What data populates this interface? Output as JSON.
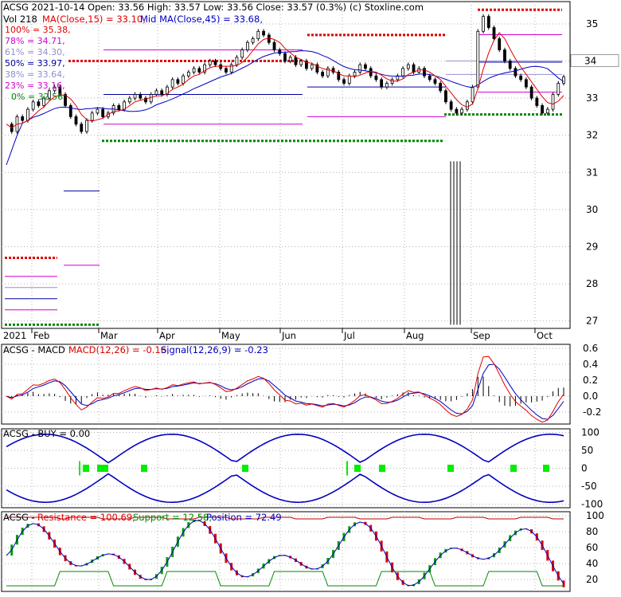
{
  "header": {
    "line1_a": "ACSG  2021-10-14 Open: 33.56  High: 33.57  Low: 33.56  Close: 33.57 (0.3%) (c) Stoxline.com",
    "line2_vol": "Vol 218",
    "line2_ma15": "MA(Close,15) = 33.10,",
    "line2_ma45": "Mid MA(Close,45) = 33.68,"
  },
  "fib_levels": [
    {
      "label": "100% = 35.38,",
      "value": 35.38,
      "color": "#e00000"
    },
    {
      "label": "78% = 34.71,",
      "value": 34.71,
      "color": "#d000d0"
    },
    {
      "label": "61% = 34.30,",
      "value": 34.3,
      "color": "#9090d0"
    },
    {
      "label": "50% = 33.97,",
      "value": 33.97,
      "color": "#0000a0"
    },
    {
      "label": "38% = 33.64,",
      "value": 33.64,
      "color": "#9090d0"
    },
    {
      "label": "23% = 33.16,",
      "value": 33.16,
      "color": "#d000d0"
    },
    {
      "label": "0% = 32.56",
      "value": 32.56,
      "color": "#008800"
    }
  ],
  "colors": {
    "ma15": "#e00000",
    "ma45": "#0000c0",
    "up": "#00a000",
    "down": "#e00000",
    "grid": "#b0b0b0",
    "green_bar": "#00ee00"
  },
  "price_panel": {
    "y_ticks": [
      "35",
      "34",
      "33",
      "32",
      "31",
      "30",
      "29",
      "28",
      "27"
    ],
    "y_values": [
      35,
      34,
      33,
      32,
      31,
      30,
      29,
      28,
      27
    ],
    "last_price_label": "34",
    "last_price_label2": "33",
    "x_labels": [
      "2021",
      "Feb",
      "Mar",
      "Apr",
      "May",
      "Jun",
      "Jul",
      "Aug",
      "Sep",
      "Oct"
    ]
  },
  "macd_panel": {
    "title": "ACSG - MACD",
    "macd_label": "MACD(12,26) = -0.16,",
    "signal_label": "Signal(12,26,9) = -0.23",
    "y_ticks": [
      "0.6",
      "0.4",
      "0.2",
      "0.0",
      "-0.2"
    ]
  },
  "buy_panel": {
    "title": "ACSG - BUY = 0.00",
    "y_ticks": [
      "100",
      "50",
      "0",
      "-50",
      "-100"
    ]
  },
  "rs_panel": {
    "title": "ACSG - ",
    "resistance_label": "Resistance = 100.69,",
    "support_label": "Support = 12.58,",
    "position_label": "Position = 72.49",
    "y_ticks": [
      "100",
      "80",
      "60",
      "40",
      "20"
    ]
  },
  "chart_data": [
    {
      "type": "candlestick",
      "title": "ACSG  2021-10-14",
      "ylim": [
        26.8,
        35.6
      ],
      "ohlc_last": {
        "date": "2021-10-14",
        "open": 33.56,
        "high": 33.57,
        "low": 33.56,
        "close": 33.57,
        "change_pct": 0.3
      },
      "volume_last": 218,
      "ma15_last": 33.1,
      "ma45_last": 33.68,
      "x_months": [
        "Feb",
        "Mar",
        "Apr",
        "May",
        "Jun",
        "Jul",
        "Aug",
        "Sep",
        "Oct"
      ],
      "close_series": [
        32.3,
        32.1,
        32.5,
        32.4,
        32.7,
        32.9,
        32.8,
        33.0,
        33.2,
        33.3,
        33.1,
        32.8,
        32.5,
        32.3,
        32.1,
        32.4,
        32.6,
        32.7,
        32.5,
        32.6,
        32.8,
        32.7,
        32.9,
        33.0,
        33.1,
        33.0,
        32.9,
        33.1,
        33.2,
        33.1,
        33.3,
        33.5,
        33.4,
        33.6,
        33.7,
        33.8,
        33.7,
        33.9,
        34.0,
        33.9,
        33.8,
        33.7,
        33.9,
        34.1,
        34.3,
        34.5,
        34.6,
        34.8,
        34.7,
        34.5,
        34.3,
        34.2,
        34.0,
        34.1,
        33.9,
        34.0,
        33.8,
        33.9,
        33.7,
        33.6,
        33.8,
        33.7,
        33.5,
        33.4,
        33.6,
        33.7,
        33.9,
        33.8,
        33.6,
        33.5,
        33.3,
        33.4,
        33.5,
        33.6,
        33.8,
        33.9,
        33.7,
        33.8,
        33.6,
        33.5,
        33.4,
        33.2,
        32.9,
        32.7,
        32.6,
        32.7,
        32.9,
        33.3,
        34.8,
        35.2,
        34.9,
        34.6,
        34.3,
        34.0,
        33.8,
        33.6,
        33.5,
        33.3,
        33.0,
        32.8,
        32.6,
        32.7,
        33.1,
        33.4,
        33.57
      ]
    },
    {
      "type": "line",
      "title": "ACSG - MACD",
      "series": [
        {
          "name": "MACD(12,26)",
          "last": -0.16
        },
        {
          "name": "Signal(12,26,9)",
          "last": -0.23
        }
      ],
      "ylim": [
        -0.35,
        0.65
      ]
    },
    {
      "type": "line",
      "title": "ACSG - BUY",
      "series": [
        {
          "name": "BUY",
          "last": 0.0
        }
      ],
      "ylim": [
        -110,
        110
      ]
    },
    {
      "type": "line",
      "title": "ACSG - Resistance / Support / Position",
      "series": [
        {
          "name": "Resistance",
          "last": 100.69
        },
        {
          "name": "Support",
          "last": 12.58
        },
        {
          "name": "Position",
          "last": 72.49
        }
      ],
      "ylim": [
        5,
        105
      ]
    }
  ]
}
